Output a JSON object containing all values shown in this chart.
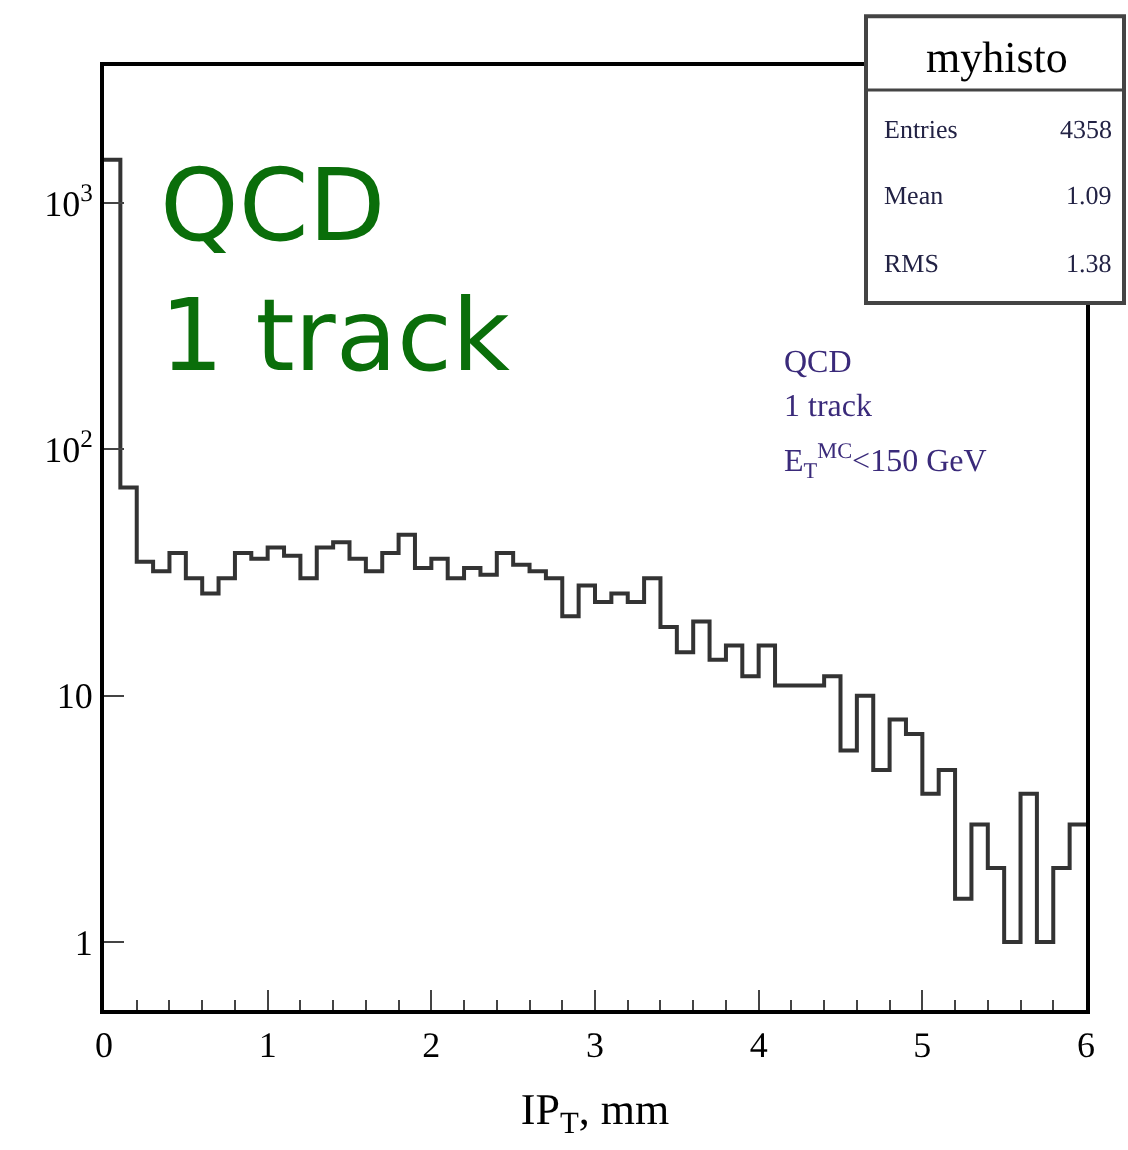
{
  "chart_data": {
    "type": "histogram",
    "xlabel": "IP$_{T}$, mm",
    "log": "y",
    "color": "#333333",
    "bins": [
      0,
      0.1,
      0.2,
      0.3,
      0.4,
      0.5,
      0.6,
      0.7,
      0.8,
      0.9,
      1.0,
      1.1,
      1.2,
      1.3,
      1.4,
      1.5,
      1.6,
      1.7,
      1.8,
      1.9,
      2.0,
      2.1,
      2.2,
      2.3,
      2.4,
      2.5,
      2.6,
      2.7,
      2.8,
      2.9,
      3.0,
      3.1,
      3.2,
      3.3,
      3.4,
      3.5,
      3.6,
      3.7,
      3.8,
      3.9,
      4.0,
      4.1,
      4.2,
      4.3,
      4.4,
      4.5,
      4.6,
      4.7,
      4.8,
      4.9,
      5.0,
      5.1,
      5.2,
      5.3,
      5.4,
      5.5,
      5.6,
      5.7,
      5.8,
      5.9,
      6.0
    ],
    "values": [
      1500,
      70,
      35,
      32,
      38,
      30,
      26,
      30,
      38,
      36,
      40,
      37,
      30,
      40,
      42,
      36,
      32,
      38,
      45,
      33,
      36,
      30,
      33,
      31,
      38,
      34,
      32,
      30,
      21,
      28,
      24,
      26,
      24,
      30,
      19,
      15,
      20,
      14,
      16,
      12,
      16,
      11,
      11,
      11,
      12,
      6,
      10,
      5,
      8,
      7,
      4,
      5,
      1.5,
      3,
      2,
      1,
      4,
      1,
      2,
      3
    ],
    "xlim": [
      0,
      6
    ],
    "xticks": [
      0,
      1,
      2,
      3,
      4,
      5,
      6
    ],
    "ylim": [
      0.53,
      3600
    ],
    "yticks": [
      1,
      10,
      {
        "value": 100,
        "label": "10$^{2}$"
      },
      {
        "value": 1000,
        "label": "10$^{3}$"
      }
    ],
    "annotations": [
      "QCD\n1 track",
      "QCD",
      "1 track",
      "E$_{T}$$^{MC}$<150 GeV",
      "myhisto",
      "Entries",
      "4358",
      "Mean",
      "1.09",
      "RMS",
      "1.38"
    ]
  }
}
